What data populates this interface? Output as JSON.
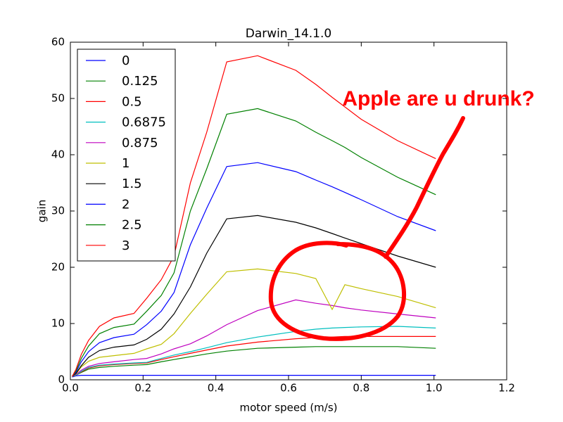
{
  "chart_data": {
    "type": "line",
    "title": "Darwin_14.1.0",
    "x_label": "motor speed (m/s)",
    "y_label": "gain",
    "xlim": [
      0,
      1.2
    ],
    "ylim": [
      0,
      60
    ],
    "xticks": [
      {
        "value": 0,
        "label": "0.0"
      },
      {
        "value": 0.2,
        "label": "0.2"
      },
      {
        "value": 0.4,
        "label": "0.4"
      },
      {
        "value": 0.6,
        "label": "0.6"
      },
      {
        "value": 0.8,
        "label": "0.8"
      },
      {
        "value": 1.0,
        "label": "1.0"
      },
      {
        "value": 1.2,
        "label": "1.2"
      }
    ],
    "yticks": [
      0,
      10,
      20,
      30,
      40,
      50,
      60
    ],
    "grid": false,
    "legend_loc": "upper left",
    "annotation": "Apple are u drunk?",
    "x": [
      0.005,
      0.015,
      0.03,
      0.05,
      0.08,
      0.12,
      0.175,
      0.21,
      0.25,
      0.285,
      0.33,
      0.375,
      0.43,
      0.515,
      0.62,
      0.675,
      0.72,
      0.755,
      0.8,
      0.9,
      1.005
    ],
    "series": [
      {
        "name": "0",
        "color": "#0000ff",
        "values": [
          0.5,
          0.7,
          0.8,
          0.8,
          0.8,
          0.8,
          0.8,
          0.8,
          0.8,
          0.8,
          0.8,
          0.8,
          0.8,
          0.8,
          0.8,
          0.8,
          0.8,
          0.8,
          0.8,
          0.8,
          0.8
        ]
      },
      {
        "name": "0.125",
        "color": "#008000",
        "values": [
          0.6,
          0.8,
          1.3,
          1.9,
          2.2,
          2.4,
          2.6,
          2.7,
          3.2,
          3.6,
          4.1,
          4.6,
          5.1,
          5.6,
          5.8,
          5.9,
          5.9,
          5.9,
          5.9,
          5.9,
          5.6
        ]
      },
      {
        "name": "0.5",
        "color": "#ff0000",
        "values": [
          0.6,
          0.8,
          1.4,
          2.1,
          2.5,
          2.7,
          2.9,
          3.0,
          3.6,
          4.1,
          4.7,
          5.3,
          6.0,
          6.7,
          7.3,
          7.5,
          7.6,
          7.7,
          7.7,
          7.7,
          7.7
        ]
      },
      {
        "name": "0.6875",
        "color": "#00bfbf",
        "values": [
          0.6,
          0.8,
          1.5,
          2.2,
          2.6,
          2.8,
          3.0,
          3.1,
          3.8,
          4.4,
          5.0,
          5.7,
          6.6,
          7.6,
          8.6,
          9.0,
          9.2,
          9.3,
          9.4,
          9.5,
          9.2
        ]
      },
      {
        "name": "0.875",
        "color": "#bf00bf",
        "values": [
          0.6,
          0.9,
          1.7,
          2.4,
          2.9,
          3.2,
          3.6,
          3.8,
          4.6,
          5.5,
          6.4,
          7.8,
          9.8,
          12.3,
          14.2,
          13.6,
          13.2,
          12.8,
          12.4,
          11.7,
          11.0
        ]
      },
      {
        "name": "1",
        "color": "#bfbf00",
        "values": [
          0.6,
          1.0,
          2.3,
          3.3,
          4.0,
          4.3,
          4.7,
          5.5,
          6.3,
          8.2,
          11.8,
          15.2,
          19.2,
          19.7,
          18.9,
          18.0,
          12.5,
          16.9,
          16.2,
          14.8,
          12.8
        ]
      },
      {
        "name": "1.5",
        "color": "#000000",
        "values": [
          0.6,
          1.1,
          2.5,
          4.0,
          5.2,
          5.8,
          6.2,
          7.2,
          9.0,
          11.7,
          16.5,
          22.5,
          28.6,
          29.2,
          28.0,
          27.0,
          26.0,
          25.2,
          24.2,
          22.0,
          20.0
        ]
      },
      {
        "name": "2",
        "color": "#0000ff",
        "values": [
          0.6,
          1.3,
          3.2,
          5.0,
          6.6,
          7.5,
          8.1,
          9.8,
          12.2,
          15.5,
          24.0,
          30.5,
          37.9,
          38.6,
          37.0,
          35.5,
          34.3,
          33.3,
          32.0,
          29.0,
          26.5
        ]
      },
      {
        "name": "2.5",
        "color": "#008000",
        "values": [
          0.6,
          1.5,
          3.8,
          6.0,
          8.2,
          9.3,
          9.9,
          12.2,
          15.0,
          19.0,
          30.0,
          37.5,
          47.2,
          48.2,
          46.0,
          44.0,
          42.5,
          41.3,
          39.5,
          36.0,
          32.9
        ]
      },
      {
        "name": "3",
        "color": "#ff0000",
        "values": [
          0.6,
          1.8,
          4.5,
          7.0,
          9.5,
          11.0,
          11.8,
          14.5,
          17.8,
          22.0,
          35.0,
          44.0,
          56.5,
          57.6,
          55.0,
          52.5,
          50.2,
          48.5,
          46.3,
          42.5,
          39.3
        ]
      }
    ]
  }
}
